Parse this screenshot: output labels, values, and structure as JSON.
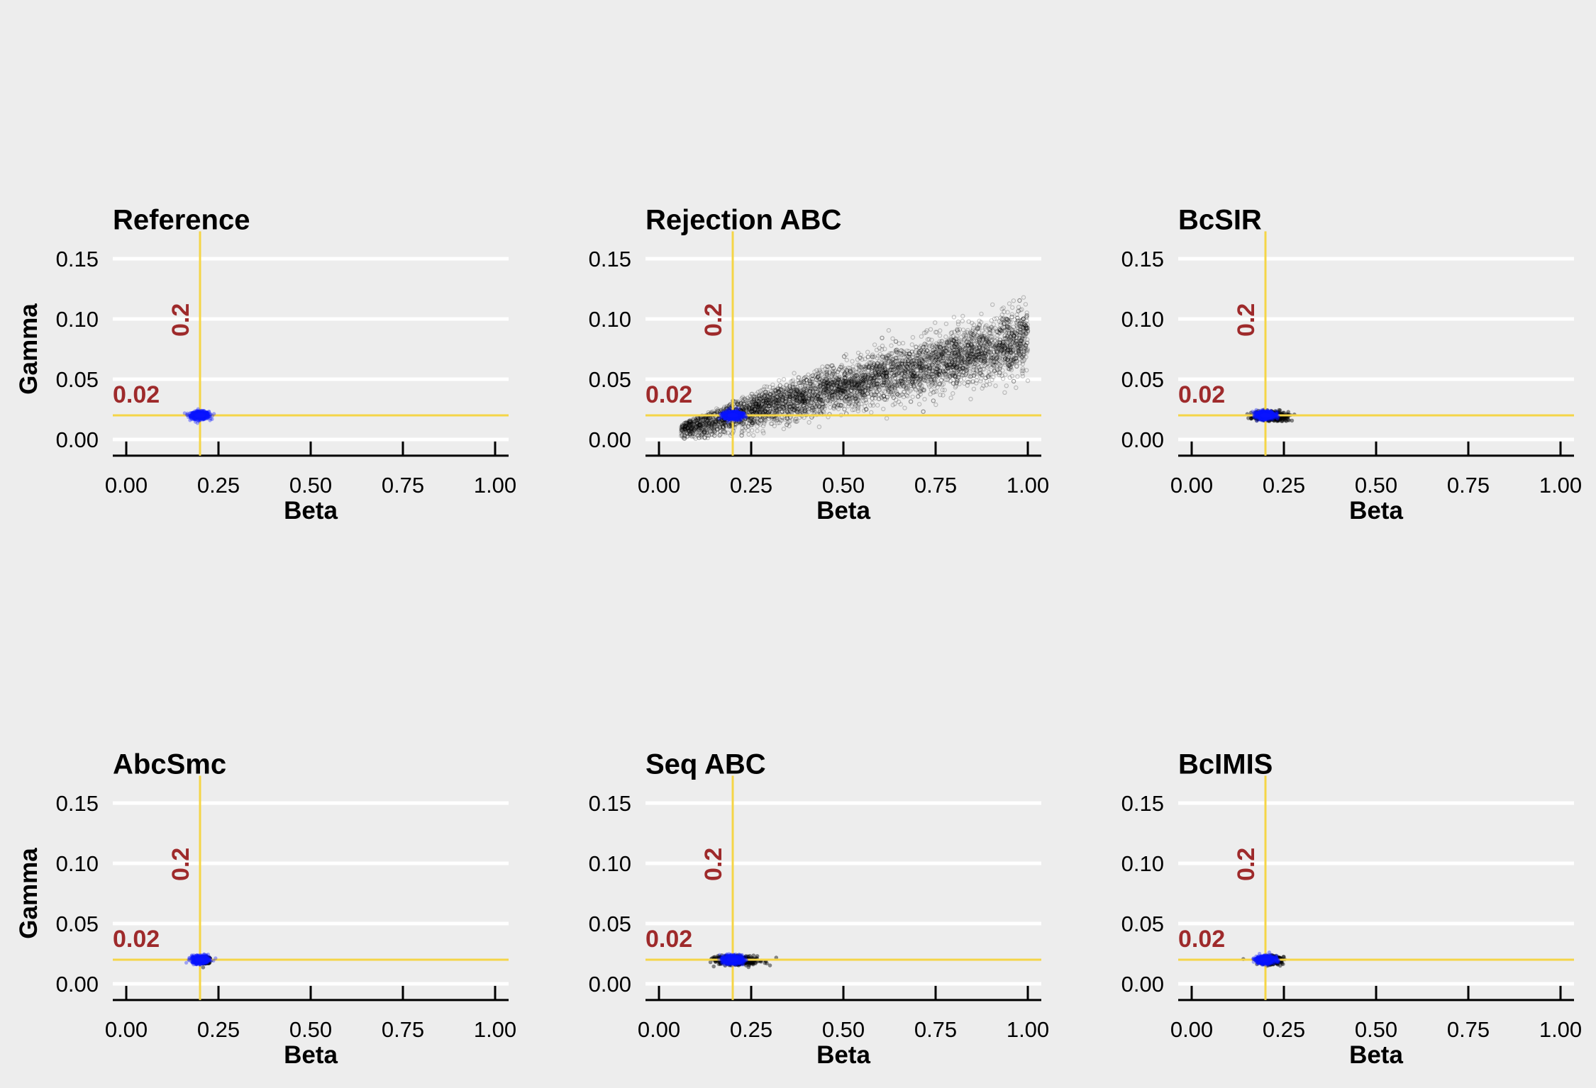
{
  "chart_data": {
    "type": "scatter",
    "panels": [
      {
        "title": "Reference",
        "center": [
          0.2,
          0.02
        ],
        "spread": [
          0.012,
          0.0016
        ],
        "samples": 0,
        "black_spread": [
          0,
          0
        ],
        "show_ylabel": true
      },
      {
        "title": "Rejection ABC",
        "center": [
          0.2,
          0.02
        ],
        "spread": [
          0.012,
          0.0016
        ],
        "samples": 5000,
        "black_spread": [
          0,
          0
        ],
        "show_ylabel": false
      },
      {
        "title": "BcSIR",
        "center": [
          0.2,
          0.02
        ],
        "spread": [
          0.012,
          0.0016
        ],
        "samples": 0,
        "black_spread": [
          0.022,
          0.0018
        ],
        "show_ylabel": false
      },
      {
        "title": "AbcSmc",
        "center": [
          0.2,
          0.02
        ],
        "spread": [
          0.011,
          0.0015
        ],
        "samples": 0,
        "black_spread": [
          0.006,
          0.0012
        ],
        "show_ylabel": true
      },
      {
        "title": "Seq ABC",
        "center": [
          0.2,
          0.02
        ],
        "spread": [
          0.013,
          0.0016
        ],
        "samples": 0,
        "black_spread": [
          0.028,
          0.0018
        ],
        "show_ylabel": false
      },
      {
        "title": "BcIMIS",
        "center": [
          0.2,
          0.02
        ],
        "spread": [
          0.012,
          0.0016
        ],
        "samples": 0,
        "black_spread": [
          0.015,
          0.0015
        ],
        "show_ylabel": false
      }
    ],
    "x_ticks": [
      "0.00",
      "0.25",
      "0.50",
      "0.75",
      "1.00"
    ],
    "y_ticks": [
      "0.00",
      "0.05",
      "0.10",
      "0.15"
    ],
    "xlim": [
      -0.05,
      1.05
    ],
    "ylim": [
      -0.007,
      0.158
    ],
    "xlabel": "Beta",
    "ylabel": "Gamma",
    "reference_lines": {
      "beta": 0.2,
      "gamma": 0.02,
      "beta_label": "0.2",
      "gamma_label": "0.02",
      "color": "#f5d547",
      "label_color": "#9e2a2b"
    },
    "colors": {
      "background": "#ededed",
      "posterior": "#0a14ff",
      "samples": "#000000",
      "grid": "#ffffff"
    },
    "grid": "horizontal"
  }
}
